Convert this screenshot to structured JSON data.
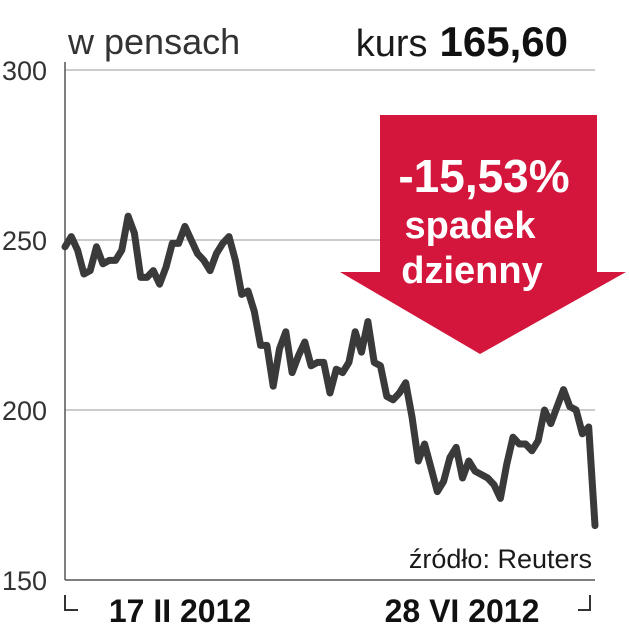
{
  "header": {
    "unit_label": "w pensach",
    "price_label": "kurs",
    "price_value": "165,60"
  },
  "badge": {
    "change": "-15,53%",
    "line1": "spadek",
    "line2": "dzienny",
    "color": "#d4163c"
  },
  "source": "źródło: Reuters",
  "chart_data": {
    "type": "line",
    "title": "",
    "xlabel": "",
    "ylabel": "",
    "ylim": [
      150,
      300
    ],
    "yticks": [
      300,
      250,
      200,
      150
    ],
    "ytick_labels": [
      "300",
      "250",
      "200",
      "150"
    ],
    "xtick_labels": [
      "17 II 2012",
      "28 VI 2012"
    ],
    "grid": true,
    "line_color": "#3a3a3a",
    "series": [
      {
        "values": [
          248,
          251,
          247,
          240,
          241,
          248,
          243,
          244,
          244,
          247,
          257,
          252,
          239,
          239,
          241,
          237,
          242,
          249,
          249,
          254,
          250,
          246,
          244,
          241,
          246,
          249,
          251,
          244,
          234,
          235,
          229,
          219,
          219,
          207,
          218,
          223,
          211,
          216,
          220,
          213,
          214,
          214,
          205,
          212,
          211,
          214,
          223,
          217,
          226,
          214,
          213,
          204,
          203,
          205,
          208,
          198,
          185,
          190,
          183,
          176,
          179,
          186,
          189,
          180,
          185,
          182,
          181,
          180,
          178,
          174,
          184,
          192,
          190,
          190,
          188,
          191,
          200,
          196,
          201,
          206,
          201,
          200,
          193,
          195,
          166
        ]
      }
    ]
  }
}
